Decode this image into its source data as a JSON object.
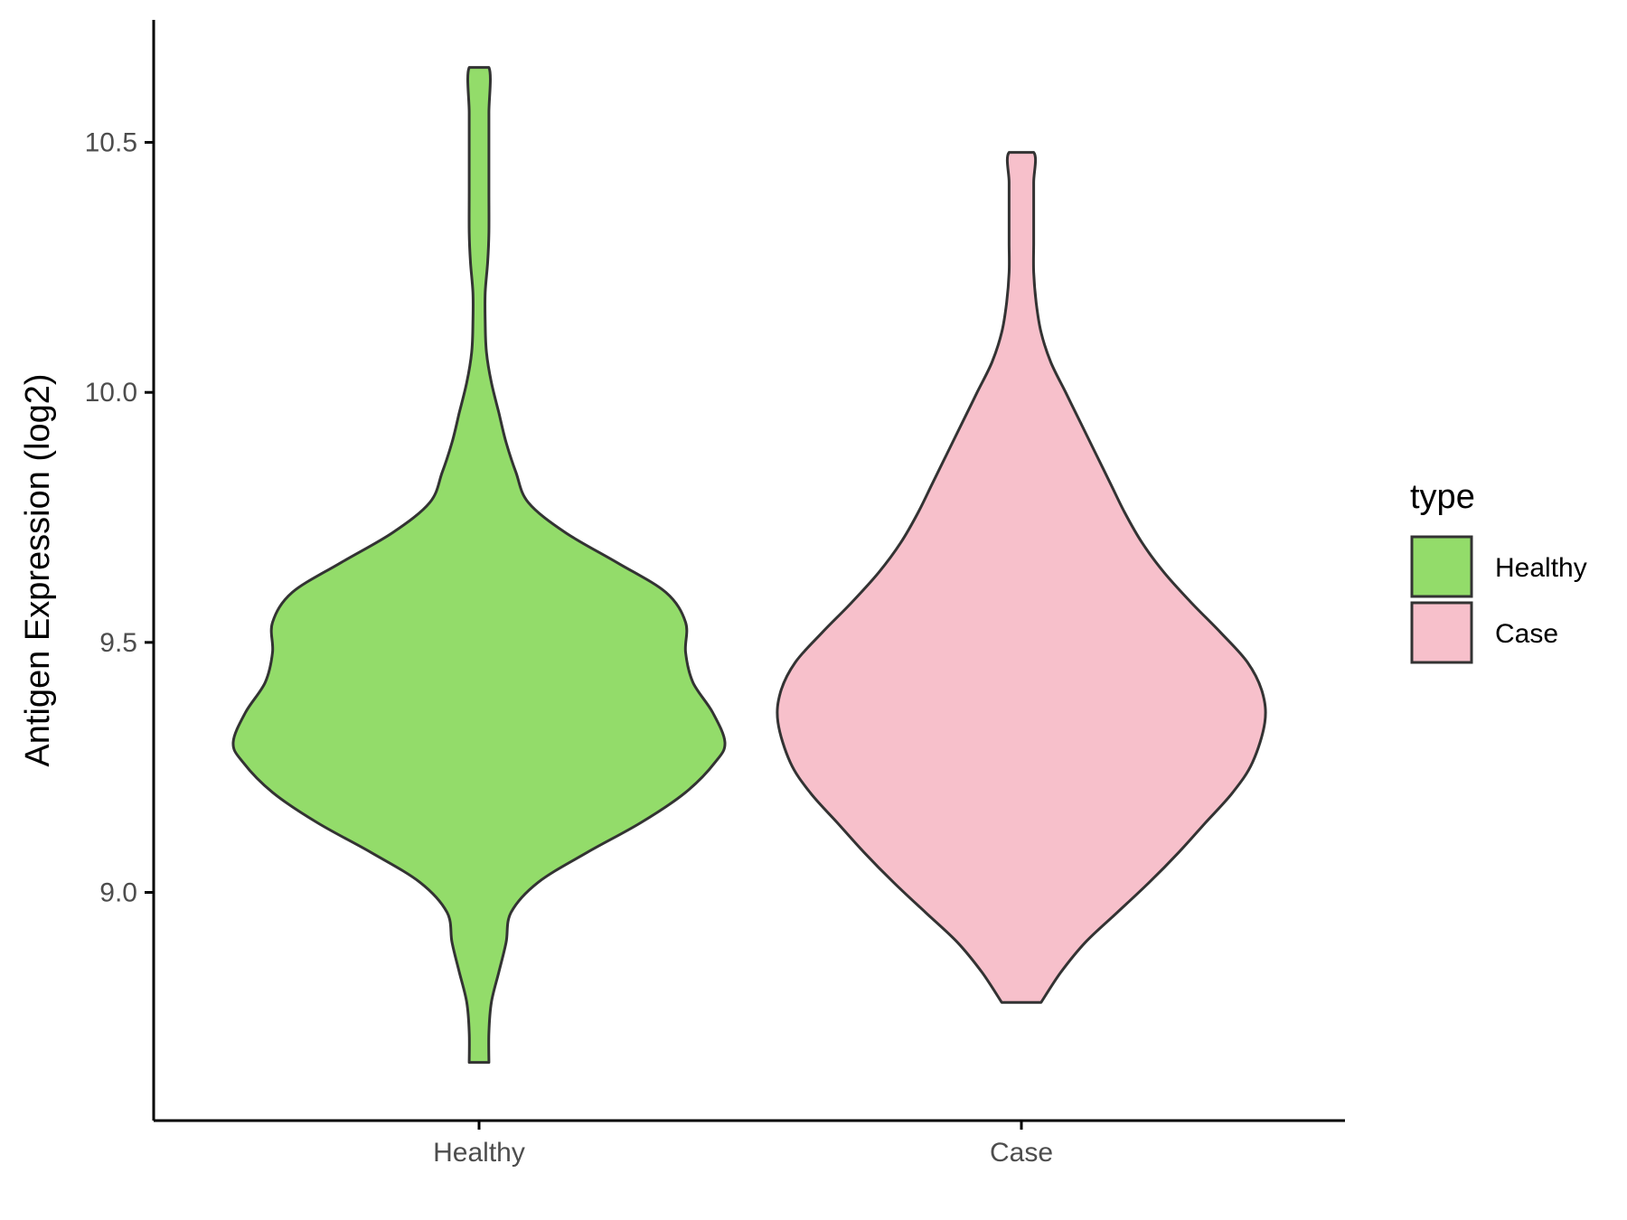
{
  "chart_data": {
    "type": "violin",
    "title": "",
    "xlabel": "",
    "ylabel": "Antigen Expression (log2)",
    "categories": [
      "Healthy",
      "Case"
    ],
    "y_ticks": [
      "9.0",
      "9.5",
      "10.0",
      "10.5"
    ],
    "ylim": [
      8.6,
      10.75
    ],
    "grid": false,
    "legend": {
      "title": "type",
      "position": "right",
      "entries": [
        {
          "label": "Healthy",
          "color": "#93dc6a"
        },
        {
          "label": "Case",
          "color": "#f7c0cb"
        }
      ]
    },
    "series": [
      {
        "category": "Healthy",
        "color": "#93dc6a",
        "min": 8.66,
        "max": 10.65,
        "density_profile": [
          [
            8.66,
            0.04
          ],
          [
            8.72,
            0.04
          ],
          [
            8.78,
            0.05
          ],
          [
            8.84,
            0.08
          ],
          [
            8.9,
            0.11
          ],
          [
            8.96,
            0.13
          ],
          [
            9.02,
            0.24
          ],
          [
            9.08,
            0.44
          ],
          [
            9.14,
            0.66
          ],
          [
            9.2,
            0.84
          ],
          [
            9.26,
            0.96
          ],
          [
            9.3,
            1.0
          ],
          [
            9.36,
            0.95
          ],
          [
            9.42,
            0.87
          ],
          [
            9.48,
            0.84
          ],
          [
            9.54,
            0.84
          ],
          [
            9.6,
            0.76
          ],
          [
            9.66,
            0.56
          ],
          [
            9.72,
            0.35
          ],
          [
            9.78,
            0.2
          ],
          [
            9.84,
            0.15
          ],
          [
            9.9,
            0.11
          ],
          [
            9.96,
            0.08
          ],
          [
            10.02,
            0.05
          ],
          [
            10.08,
            0.03
          ],
          [
            10.14,
            0.025
          ],
          [
            10.2,
            0.025
          ],
          [
            10.26,
            0.035
          ],
          [
            10.32,
            0.04
          ],
          [
            10.4,
            0.04
          ],
          [
            10.48,
            0.04
          ],
          [
            10.56,
            0.04
          ],
          [
            10.65,
            0.04
          ]
        ]
      },
      {
        "category": "Case",
        "color": "#f7c0cb",
        "min": 8.78,
        "max": 10.48,
        "density_profile": [
          [
            8.78,
            0.08
          ],
          [
            8.84,
            0.16
          ],
          [
            8.9,
            0.26
          ],
          [
            8.96,
            0.39
          ],
          [
            9.02,
            0.52
          ],
          [
            9.08,
            0.64
          ],
          [
            9.14,
            0.75
          ],
          [
            9.2,
            0.86
          ],
          [
            9.26,
            0.94
          ],
          [
            9.34,
            0.99
          ],
          [
            9.4,
            0.98
          ],
          [
            9.46,
            0.92
          ],
          [
            9.52,
            0.81
          ],
          [
            9.58,
            0.69
          ],
          [
            9.64,
            0.58
          ],
          [
            9.7,
            0.49
          ],
          [
            9.76,
            0.42
          ],
          [
            9.82,
            0.36
          ],
          [
            9.88,
            0.3
          ],
          [
            9.94,
            0.24
          ],
          [
            10.0,
            0.18
          ],
          [
            10.06,
            0.12
          ],
          [
            10.12,
            0.08
          ],
          [
            10.18,
            0.06
          ],
          [
            10.24,
            0.05
          ],
          [
            10.3,
            0.05
          ],
          [
            10.36,
            0.05
          ],
          [
            10.42,
            0.05
          ],
          [
            10.48,
            0.05
          ]
        ]
      }
    ]
  }
}
